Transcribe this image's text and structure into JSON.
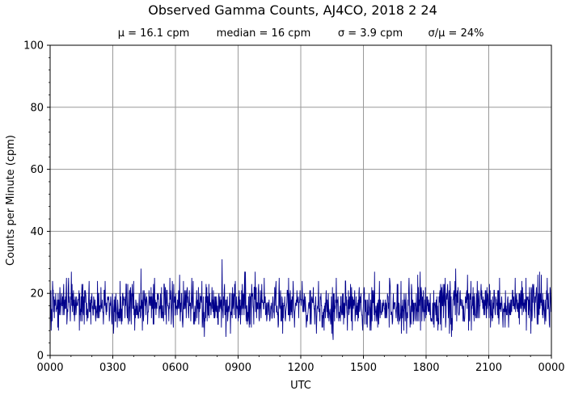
{
  "chart_data": {
    "type": "line",
    "title": "Observed Gamma Counts, AJ4CO, 2018 2 24",
    "stats": {
      "mean": "μ = 16.1 cpm",
      "median": "median = 16 cpm",
      "sigma": "σ = 3.9 cpm",
      "ratio": "σ/μ = 24%"
    },
    "xlabel": "UTC",
    "ylabel": "Counts per Minute (cpm)",
    "xlim": [
      0,
      1440
    ],
    "ylim": [
      0,
      100
    ],
    "x_ticks": [
      {
        "value": 0,
        "label": "0000"
      },
      {
        "value": 180,
        "label": "0300"
      },
      {
        "value": 360,
        "label": "0600"
      },
      {
        "value": 540,
        "label": "0900"
      },
      {
        "value": 720,
        "label": "1200"
      },
      {
        "value": 900,
        "label": "1500"
      },
      {
        "value": 1080,
        "label": "1800"
      },
      {
        "value": 1260,
        "label": "2100"
      },
      {
        "value": 1440,
        "label": "0000"
      }
    ],
    "y_ticks": [
      {
        "value": 0,
        "label": "0"
      },
      {
        "value": 20,
        "label": "20"
      },
      {
        "value": 40,
        "label": "40"
      },
      {
        "value": 60,
        "label": "60"
      },
      {
        "value": 80,
        "label": "80"
      },
      {
        "value": 100,
        "label": "100"
      }
    ],
    "grid": true,
    "series": [
      {
        "color": "#00008b",
        "mean": 16.1,
        "median": 16,
        "std": 3.9,
        "min_observed": 5,
        "max_observed": 31,
        "sample_interval_min": 1
      }
    ]
  }
}
